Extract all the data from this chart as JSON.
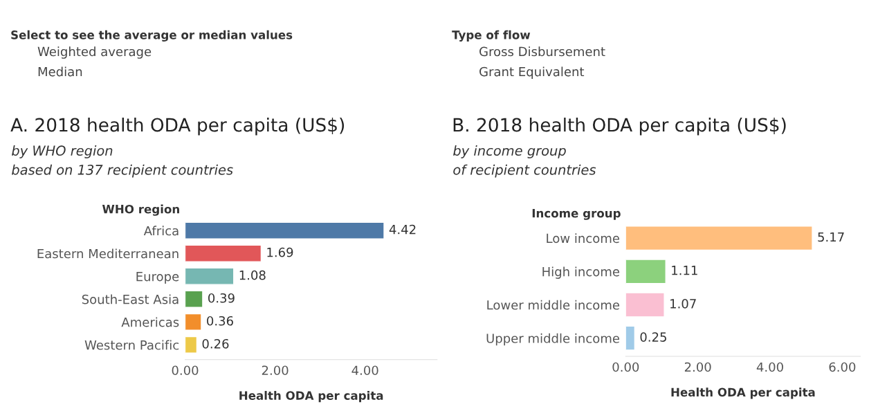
{
  "chart_data": [
    {
      "type": "bar",
      "orientation": "horizontal",
      "title": "A. 2018 health ODA per capita (US$)",
      "subtitle": "by WHO region\nbased on 137 recipient countries",
      "ylabel": "WHO region",
      "xlabel": "Health ODA per capita",
      "annotations": [
        "Select to see the average or median values",
        "Weighted average",
        "Median"
      ],
      "categories": [
        "Africa",
        "Eastern Mediterranean",
        "Europe",
        "South-East Asia",
        "Americas",
        "Western Pacific"
      ],
      "values": [
        4.42,
        1.69,
        1.08,
        0.39,
        0.36,
        0.26
      ],
      "colors": [
        "#4e79a7",
        "#e15759",
        "#76b7b2",
        "#59a14f",
        "#f28e2b",
        "#edc948"
      ],
      "xlim": [
        0,
        5.6
      ],
      "xticks": [
        {
          "value": 0,
          "label": "0.00"
        },
        {
          "value": 2,
          "label": "2.00"
        },
        {
          "value": 4,
          "label": "4.00"
        }
      ],
      "data_labels": true,
      "grid": false
    },
    {
      "type": "bar",
      "orientation": "horizontal",
      "title": "B. 2018 health ODA per capita (US$)",
      "subtitle": "by income group\nof recipient countries",
      "ylabel": "Income group",
      "xlabel": "Health ODA per capita",
      "annotations": [
        "Type of flow",
        "Gross Disbursement",
        "Grant Equivalent"
      ],
      "categories": [
        "Low income",
        "High income",
        "Lower middle income",
        "Upper middle income"
      ],
      "values": [
        5.17,
        1.11,
        1.07,
        0.25
      ],
      "colors": [
        "#ffbe7d",
        "#8cd17d",
        "#fabfd2",
        "#a0cbe8"
      ],
      "xlim": [
        0,
        6.5
      ],
      "xticks": [
        {
          "value": 0,
          "label": "0.00"
        },
        {
          "value": 2,
          "label": "2.00"
        },
        {
          "value": 4,
          "label": "4.00"
        },
        {
          "value": 6,
          "label": "6.00"
        }
      ],
      "data_labels": true,
      "grid": false
    }
  ]
}
